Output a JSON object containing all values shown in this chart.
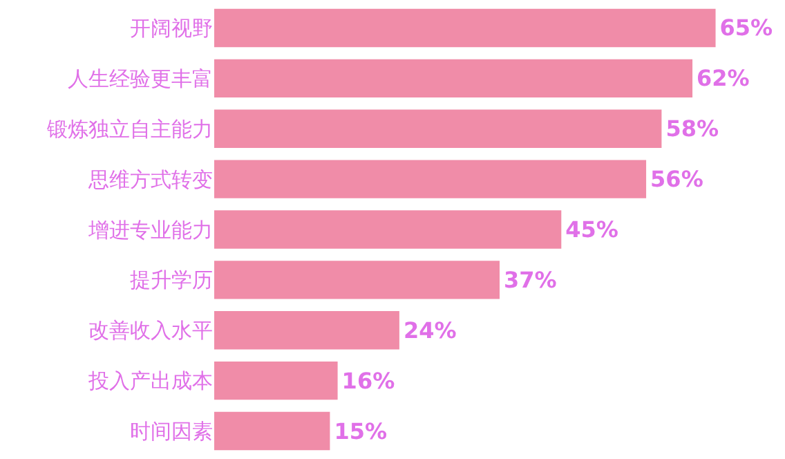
{
  "chart_data": {
    "type": "bar",
    "orientation": "horizontal",
    "categories": [
      "开阔视野",
      "人生经验更丰富",
      "锻炼独立自主能力",
      "思维方式转变",
      "增进专业能力",
      "提升学历",
      "改善收入水平",
      "投入产出成本",
      "时间因素"
    ],
    "values": [
      65,
      62,
      58,
      56,
      45,
      37,
      24,
      16,
      15
    ],
    "value_labels": [
      "65%",
      "62%",
      "58%",
      "56%",
      "45%",
      "37%",
      "24%",
      "16%",
      "15%"
    ],
    "color": "#f08ca8",
    "xlim": [
      0,
      74
    ],
    "tick_labels": "y"
  }
}
